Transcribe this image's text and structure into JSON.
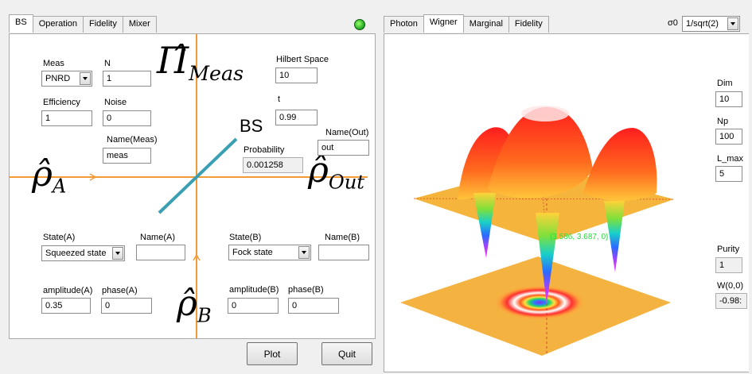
{
  "left": {
    "tabs": [
      "BS",
      "Operation",
      "Fidelity",
      "Mixer"
    ],
    "active_tab": "BS",
    "meas": {
      "label": "Meas",
      "value": "PNRD",
      "n_label": "N",
      "n_value": "1",
      "efficiency_label": "Efficiency",
      "efficiency_value": "1",
      "noise_label": "Noise",
      "noise_value": "0",
      "name_label": "Name(Meas)",
      "name_value": "meas"
    },
    "hilbert_label": "Hilbert Space",
    "hilbert_value": "10",
    "t_label": "t",
    "t_value": "0.99",
    "name_out_label": "Name(Out)",
    "name_out_value": "out",
    "bs_label": "BS",
    "probability_label": "Probability",
    "probability_value": "0.001258",
    "state_a": {
      "label": "State(A)",
      "value": "Squeezed state",
      "name_label": "Name(A)",
      "name_value": "",
      "amp_label": "amplitude(A)",
      "amp_value": "0.35",
      "phase_label": "phase(A)",
      "phase_value": "0"
    },
    "state_b": {
      "label": "State(B)",
      "value": "Fock state",
      "name_label": "Name(B)",
      "name_value": "",
      "amp_label": "amplitude(B)",
      "amp_value": "0",
      "phase_label": "phase(B)",
      "phase_value": "0"
    },
    "symbols": {
      "pi_hat": "Π̂",
      "pi_sub": "Meas",
      "rho_hat": "ρ̂",
      "rho_a_sub": "A",
      "rho_b_sub": "B",
      "rho_out_sub": "Out"
    },
    "plot_label": "Plot",
    "quit_label": "Quit"
  },
  "right": {
    "tabs": [
      "Photon",
      "Wigner",
      "Marginal",
      "Fidelity"
    ],
    "active_tab": "Wigner",
    "sigma_label": "σ0",
    "sigma_value": "1/sqrt(2)",
    "dim_label": "Dim",
    "dim_value": "10",
    "np_label": "Np",
    "np_value": "100",
    "lmax_label": "L_max",
    "lmax_value": "5",
    "purity_label": "Purity",
    "purity_value": "1",
    "w00_label": "W(0,0)",
    "w00_value": "-0.98:",
    "plot_annotation": "(3.586, 3.687, 0)"
  },
  "colors": {
    "beam": "#f29a36",
    "splitter": "#3a9fb3",
    "status": "#3ec43a"
  }
}
